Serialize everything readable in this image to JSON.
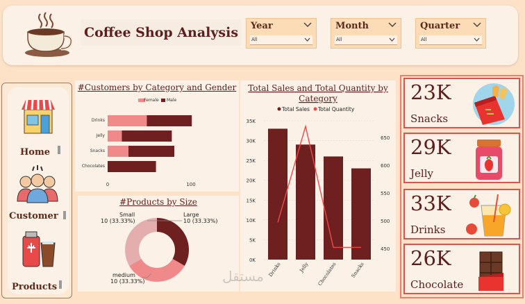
{
  "header": {
    "title": "Coffee Shop Analysis",
    "slicers": [
      {
        "label": "Year",
        "value": "All"
      },
      {
        "label": "Month",
        "value": "All"
      },
      {
        "label": "Quarter",
        "value": "All"
      }
    ]
  },
  "nav": {
    "items": [
      {
        "label": "Home",
        "icon": "store-icon"
      },
      {
        "label": "Customer",
        "icon": "people-icon"
      },
      {
        "label": "Products",
        "icon": "drinks-icon"
      }
    ]
  },
  "customers_chart": {
    "title": "#Customers by Category and Gender",
    "legend": [
      "Female",
      "Male"
    ],
    "colors": {
      "female": "#f08a8a",
      "male": "#6e2020"
    },
    "ticks": [
      "0",
      "100"
    ]
  },
  "size_chart": {
    "title": "#Products by Size",
    "labels": [
      {
        "name": "Small",
        "value": "10 (33.33%)"
      },
      {
        "name": "Large",
        "value": "10 (33.33%)"
      },
      {
        "name": "medium",
        "value": "10 (33.33%)"
      }
    ]
  },
  "sales_chart": {
    "title": "Total Sales and Total Quantity by Category",
    "legend": [
      "Total Sales",
      "Total Quantity"
    ],
    "y_ticks": [
      "0K",
      "5K",
      "10K",
      "15K",
      "20K",
      "25K",
      "30K",
      "35K"
    ],
    "y2_ticks": [
      "450",
      "500",
      "550",
      "600",
      "650"
    ]
  },
  "chart_data": [
    {
      "type": "bar",
      "title": "#Customers by Category and Gender",
      "orientation": "horizontal",
      "stacked": true,
      "categories": [
        "Drinks",
        "Jelly",
        "Snacks",
        "Chocolates"
      ],
      "series": [
        {
          "name": "Female",
          "values": [
            47,
            17,
            25,
            0
          ]
        },
        {
          "name": "Male",
          "values": [
            54,
            60,
            55,
            58
          ]
        }
      ],
      "xlim": [
        0,
        120
      ],
      "legend": "top-left"
    },
    {
      "type": "pie",
      "title": "#Products by Size",
      "donut": true,
      "categories": [
        "Large",
        "medium",
        "Small"
      ],
      "values": [
        10,
        10,
        10
      ],
      "colors": [
        "#6e2020",
        "#f08a8a",
        "#e5aeae"
      ]
    },
    {
      "type": "bar",
      "title": "Total Sales and Total Quantity by Category",
      "categories": [
        "Drinks",
        "Jelly",
        "Chocolates",
        "Snacks"
      ],
      "series": [
        {
          "name": "Total Sales",
          "type": "bar",
          "values": [
            33000,
            29000,
            26000,
            23000
          ],
          "axis": "left"
        },
        {
          "name": "Total Quantity",
          "type": "line",
          "values": [
            497,
            670,
            452,
            452
          ],
          "axis": "right"
        }
      ],
      "ylim": [
        0,
        35000
      ],
      "y2lim": [
        430,
        680
      ],
      "legend": "top-left"
    }
  ],
  "kpis": [
    {
      "value": "23K",
      "label": "Snacks",
      "icon": "snacks-icon"
    },
    {
      "value": "29K",
      "label": "Jelly",
      "icon": "jelly-jar-icon"
    },
    {
      "value": "33K",
      "label": "Drinks",
      "icon": "drink-glass-icon"
    },
    {
      "value": "26K",
      "label": "Chocolate",
      "icon": "chocolate-bar-icon"
    }
  ],
  "watermark": "مستقل"
}
